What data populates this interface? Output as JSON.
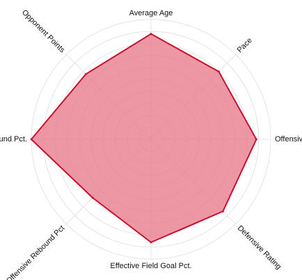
{
  "chart_data": {
    "type": "radar",
    "axes": [
      "Average Age",
      "Pace",
      "Offensive Rating",
      "Defensive Rating",
      "Effective Field Goal Pct.",
      "Offensive Rebound Pct",
      "Defensive Rebound Pct.",
      "Opponent Points"
    ],
    "values": [
      0.88,
      0.8,
      0.88,
      0.85,
      0.86,
      0.69,
      1.0,
      0.77
    ],
    "range": [
      0,
      1
    ],
    "grid_levels": 10,
    "grid": true,
    "series": [
      {
        "values": [
          0.88,
          0.8,
          0.88,
          0.85,
          0.86,
          0.69,
          1.0,
          0.77
        ]
      }
    ],
    "colors": {
      "fill": "#e8808f",
      "stroke": "#c8102e",
      "grid": "#e3e3e3"
    }
  }
}
